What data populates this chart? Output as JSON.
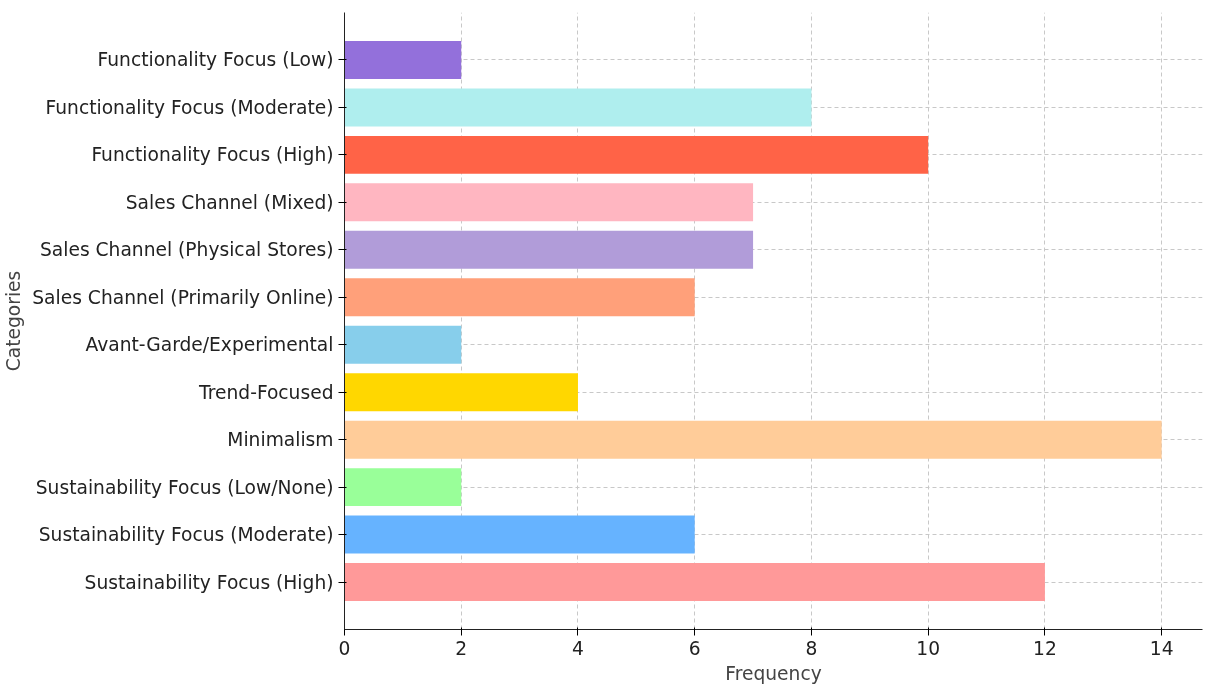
{
  "chart_data": {
    "type": "bar",
    "orientation": "horizontal",
    "xlabel": "Frequency",
    "ylabel": "Categories",
    "categories": [
      "Functionality Focus (Low)",
      "Functionality Focus (Moderate)",
      "Functionality Focus (High)",
      "Sales Channel (Mixed)",
      "Sales Channel (Physical Stores)",
      "Sales Channel (Primarily Online)",
      "Avant-Garde/Experimental",
      "Trend-Focused",
      "Minimalism",
      "Sustainability Focus (Low/None)",
      "Sustainability Focus (Moderate)",
      "Sustainability Focus (High)"
    ],
    "values": [
      2,
      8,
      10,
      7,
      7,
      6,
      2,
      4,
      14,
      2,
      6,
      12
    ],
    "colors": [
      "#9370db",
      "#afeeee",
      "#ff6347",
      "#ffb6c1",
      "#b19cd9",
      "#ffa07a",
      "#87ceeb",
      "#ffd700",
      "#ffcc99",
      "#99ff99",
      "#66b3ff",
      "#ff9999"
    ],
    "xlim": [
      0,
      14.7
    ],
    "xticks": [
      0,
      2,
      4,
      6,
      8,
      10,
      12,
      14
    ],
    "grid": true
  }
}
